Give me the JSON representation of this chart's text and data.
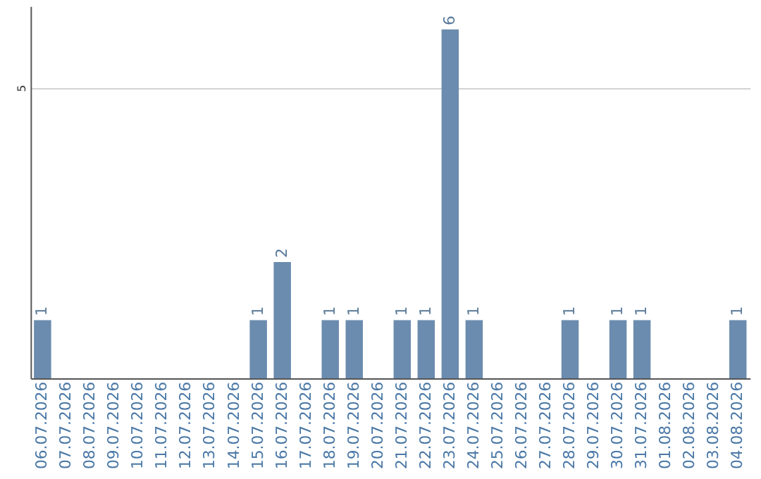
{
  "chart_data": {
    "type": "bar",
    "categories": [
      "06.07.2026",
      "07.07.2026",
      "08.07.2026",
      "09.07.2026",
      "10.07.2026",
      "11.07.2026",
      "12.07.2026",
      "13.07.2026",
      "14.07.2026",
      "15.07.2026",
      "16.07.2026",
      "17.07.2026",
      "18.07.2026",
      "19.07.2026",
      "20.07.2026",
      "21.07.2026",
      "22.07.2026",
      "23.07.2026",
      "24.07.2026",
      "25.07.2026",
      "26.07.2026",
      "27.07.2026",
      "28.07.2026",
      "29.07.2026",
      "30.07.2026",
      "31.07.2026",
      "01.08.2026",
      "02.08.2026",
      "03.08.2026",
      "04.08.2026"
    ],
    "values": [
      1,
      0,
      0,
      0,
      0,
      0,
      0,
      0,
      0,
      1,
      2,
      0,
      1,
      1,
      0,
      1,
      1,
      6,
      1,
      0,
      0,
      0,
      1,
      0,
      1,
      1,
      0,
      0,
      0,
      1
    ],
    "value_labels": [
      "1",
      null,
      null,
      null,
      null,
      null,
      null,
      null,
      null,
      "1",
      "2",
      null,
      "1",
      "1",
      null,
      "1",
      "1",
      "6",
      "1",
      null,
      null,
      null,
      "1",
      null,
      "1",
      "1",
      null,
      null,
      null,
      "1"
    ],
    "color": "#6b8cae",
    "ylim": [
      0,
      6.4
    ],
    "yticks": [
      5
    ],
    "grid": "y"
  }
}
